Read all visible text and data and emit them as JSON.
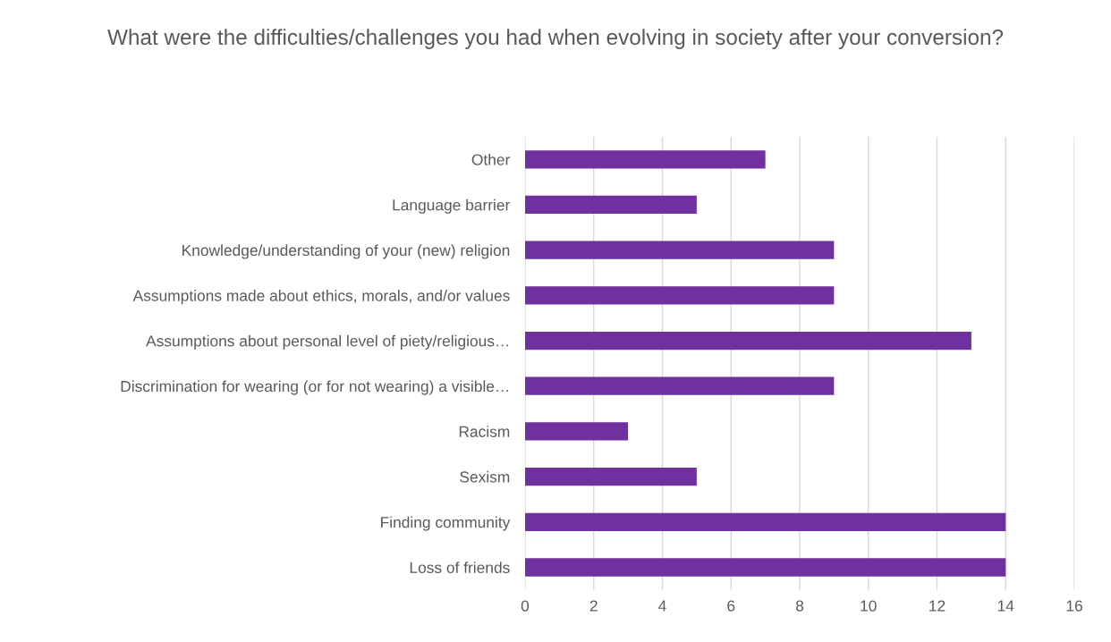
{
  "chart_data": {
    "type": "bar",
    "orientation": "horizontal",
    "title": "What were the difficulties/challenges you had when evolving in society after your conversion?",
    "categories": [
      "Other",
      "Language barrier",
      "Knowledge/understanding of your (new) religion",
      "Assumptions made about ethics, morals, and/or values",
      "Assumptions about personal level of piety/religious…",
      "Discrimination for wearing (or for not wearing) a visible…",
      "Racism",
      "Sexism",
      "Finding community",
      "Loss of friends"
    ],
    "values": [
      7,
      5,
      9,
      9,
      13,
      9,
      3,
      5,
      14,
      14
    ],
    "color": "#7030a0",
    "xlim": [
      0,
      16
    ],
    "xticks": [
      0,
      2,
      4,
      6,
      8,
      10,
      12,
      14,
      16
    ],
    "grid": "x",
    "legend": false
  }
}
